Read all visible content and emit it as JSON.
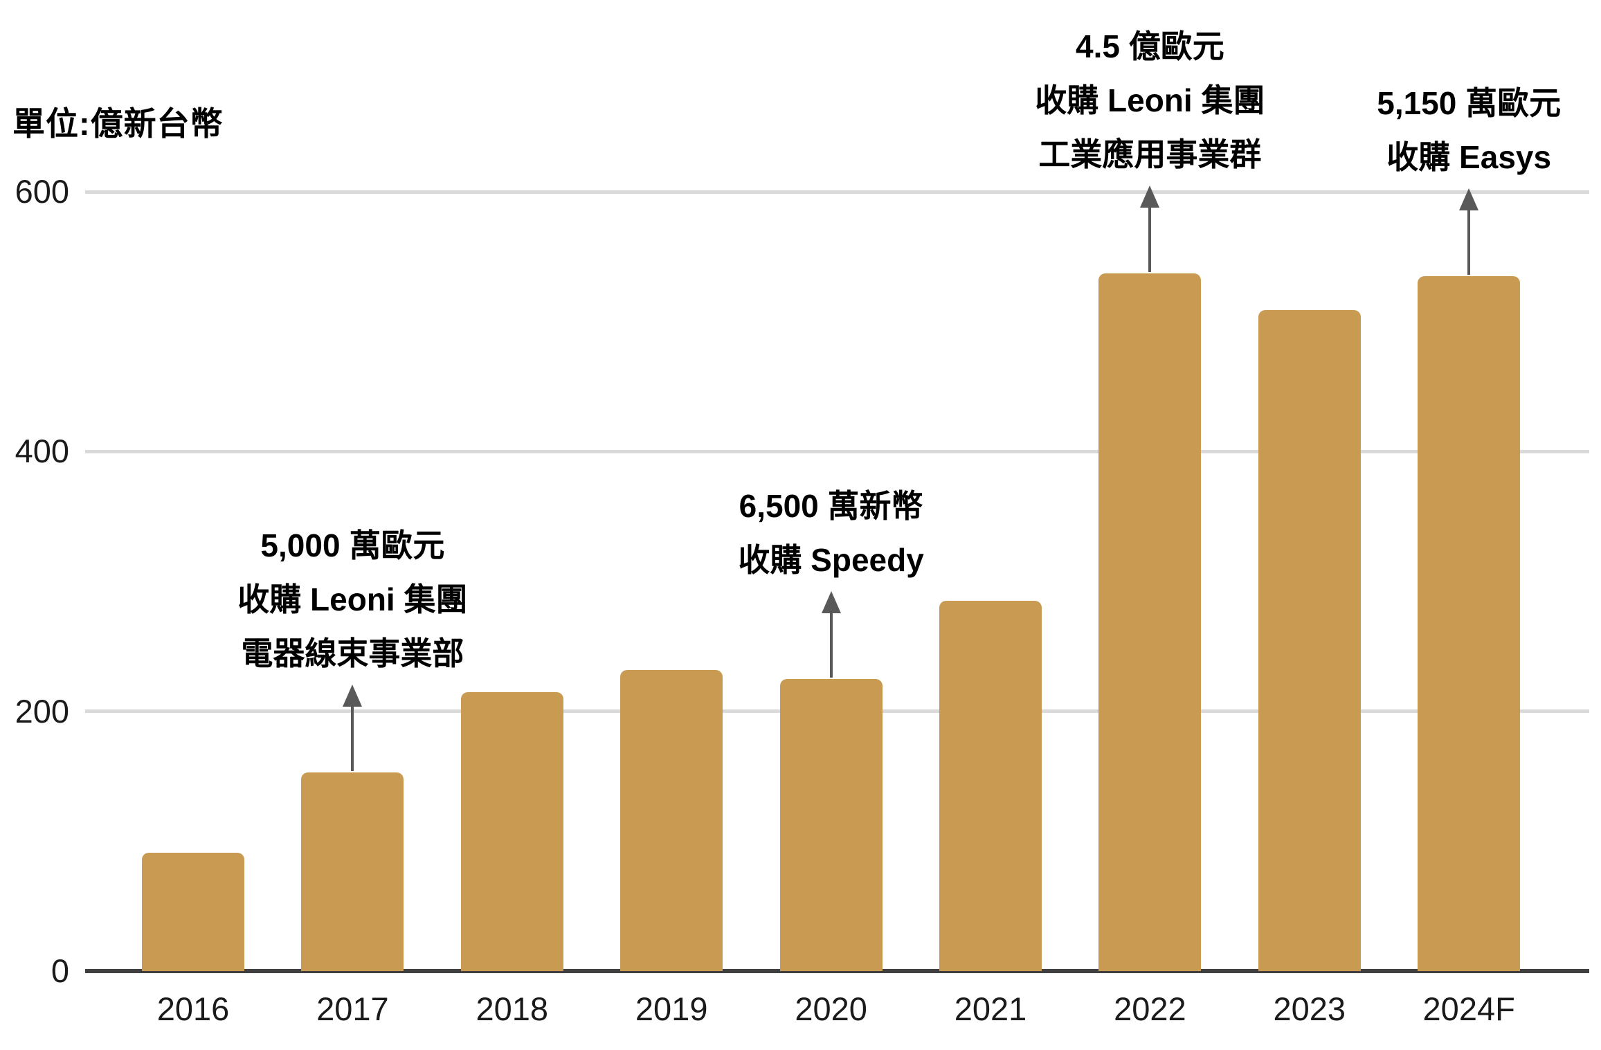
{
  "unit_label": "單位:億新台幣",
  "colors": {
    "bar": "#C99A52",
    "gridline": "#D9D9D9",
    "axis_line": "#3F3F3F",
    "arrow": "#595959",
    "text": "#000000"
  },
  "chart_data": {
    "type": "bar",
    "title": "",
    "unit_label": "單位:億新台幣",
    "categories": [
      "2016",
      "2017",
      "2018",
      "2019",
      "2020",
      "2021",
      "2022",
      "2023",
      "2024F"
    ],
    "values": [
      91,
      153,
      215,
      232,
      225,
      285,
      537,
      509,
      535
    ],
    "xlabel": "",
    "ylabel": "億新台幣",
    "ylim": [
      0,
      600
    ],
    "yticks": [
      0,
      200,
      400,
      600
    ],
    "grid": true,
    "legend": "none",
    "bar_color": "#C99A52",
    "annotations": [
      {
        "year": "2017",
        "lines": [
          "5,000 萬歐元",
          "收購 Leoni 集團",
          "電器線束事業部"
        ]
      },
      {
        "year": "2020",
        "lines": [
          "6,500 萬新幣",
          "收購 Speedy"
        ]
      },
      {
        "year": "2022",
        "lines": [
          "4.5 億歐元",
          "收購 Leoni 集團",
          "工業應用事業群"
        ]
      },
      {
        "year": "2024F",
        "lines": [
          "5,150 萬歐元",
          "收購 Easys"
        ]
      }
    ]
  }
}
